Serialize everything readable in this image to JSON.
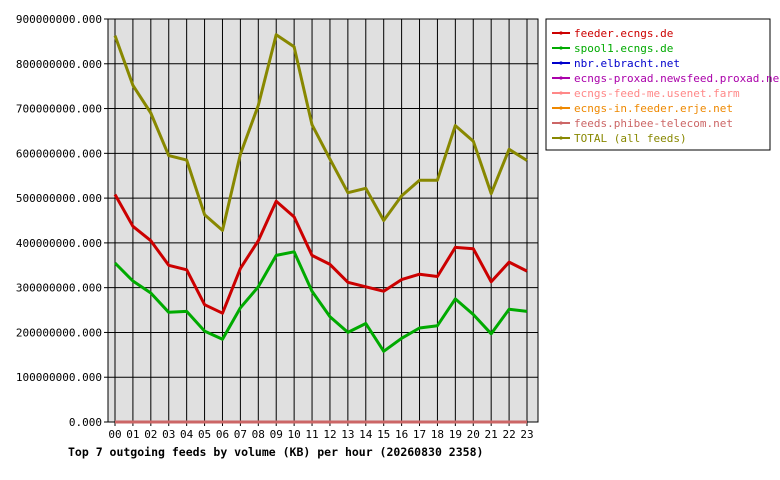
{
  "chart_data": {
    "type": "line",
    "title": "Top 7 outgoing feeds by volume (KB) per hour (20260830 2358)",
    "xlabel": "",
    "ylabel": "",
    "grid": true,
    "legend_position": "top-right",
    "x": [
      "00",
      "01",
      "02",
      "03",
      "04",
      "05",
      "06",
      "07",
      "08",
      "09",
      "10",
      "11",
      "12",
      "13",
      "14",
      "15",
      "16",
      "17",
      "18",
      "19",
      "20",
      "21",
      "22",
      "23"
    ],
    "y_ticks": [
      "0.000",
      "100000000.000",
      "200000000.000",
      "300000000.000",
      "400000000.000",
      "500000000.000",
      "600000000.000",
      "700000000.000",
      "800000000.000",
      "900000000.000"
    ],
    "ylim": [
      0,
      900000000
    ],
    "series": [
      {
        "name": "feeder.ecngs.de",
        "color": "#cc0000",
        "values": [
          508000000,
          437000000,
          405000000,
          350000000,
          340000000,
          262000000,
          243000000,
          343000000,
          405000000,
          493000000,
          458000000,
          372000000,
          352000000,
          312000000,
          302000000,
          292000000,
          318000000,
          330000000,
          325000000,
          390000000,
          387000000,
          313000000,
          357000000,
          337000000
        ]
      },
      {
        "name": "spool1.ecngs.de",
        "color": "#00aa00",
        "values": [
          355000000,
          315000000,
          288000000,
          245000000,
          247000000,
          203000000,
          185000000,
          255000000,
          302000000,
          372000000,
          380000000,
          292000000,
          235000000,
          200000000,
          220000000,
          158000000,
          187000000,
          210000000,
          215000000,
          275000000,
          240000000,
          197000000,
          252000000,
          247000000
        ]
      },
      {
        "name": "nbr.elbracht.net",
        "color": "#0000cc",
        "values": [
          0,
          0,
          0,
          0,
          0,
          0,
          0,
          0,
          0,
          0,
          0,
          0,
          0,
          0,
          0,
          0,
          0,
          0,
          0,
          0,
          0,
          0,
          0,
          0
        ]
      },
      {
        "name": "ecngs-proxad.newsfeed.proxad.net",
        "color": "#aa00aa",
        "values": [
          0,
          0,
          0,
          0,
          0,
          0,
          0,
          0,
          0,
          0,
          0,
          0,
          0,
          0,
          0,
          0,
          0,
          0,
          0,
          0,
          0,
          0,
          0,
          0
        ]
      },
      {
        "name": "ecngs-feed-me.usenet.farm",
        "color": "#ff8888",
        "values": [
          0,
          0,
          0,
          0,
          0,
          0,
          0,
          0,
          0,
          0,
          0,
          0,
          0,
          0,
          0,
          0,
          0,
          0,
          0,
          0,
          0,
          0,
          0,
          0
        ]
      },
      {
        "name": "ecngs-in.feeder.erje.net",
        "color": "#ee8800",
        "values": [
          0,
          0,
          0,
          0,
          0,
          0,
          0,
          0,
          0,
          0,
          0,
          0,
          0,
          0,
          0,
          0,
          0,
          0,
          0,
          0,
          0,
          0,
          0,
          0
        ]
      },
      {
        "name": "feeds.phibee-telecom.net",
        "color": "#cc6666",
        "values": [
          0,
          0,
          0,
          0,
          0,
          0,
          0,
          0,
          0,
          0,
          0,
          0,
          0,
          0,
          0,
          0,
          0,
          0,
          0,
          0,
          0,
          0,
          0,
          0
        ]
      },
      {
        "name": "TOTAL (all feeds)",
        "color": "#888800",
        "values": [
          863000000,
          752000000,
          690000000,
          595000000,
          585000000,
          463000000,
          428000000,
          598000000,
          707000000,
          865000000,
          838000000,
          664000000,
          587000000,
          512000000,
          522000000,
          450000000,
          505000000,
          540000000,
          540000000,
          662000000,
          627000000,
          510000000,
          609000000,
          584000000
        ]
      }
    ]
  }
}
